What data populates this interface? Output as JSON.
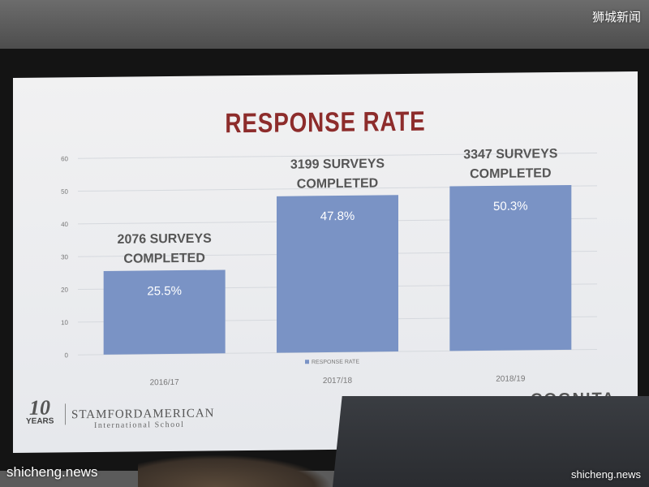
{
  "watermarks": {
    "top_right": "狮城新闻",
    "bottom_left": "shicheng.news",
    "bottom_right": "shicheng.news"
  },
  "slide": {
    "title": "RESPONSE RATE",
    "logo_left": {
      "number": "10",
      "years": "YEARS",
      "name": "STAMFORDAMERICAN",
      "sub": "International School"
    },
    "logo_right": "COGNITA"
  },
  "colors": {
    "bar": "#7a93c5",
    "title": "#8d2c2b",
    "grid": "#d6d9de",
    "axis_text": "#777777"
  },
  "chart_data": {
    "type": "bar",
    "title": "RESPONSE RATE",
    "categories": [
      "2016/17",
      "2017/18",
      "2018/19"
    ],
    "series": [
      {
        "name": "RESPONSE RATE",
        "values": [
          25.5,
          47.8,
          50.3
        ]
      }
    ],
    "data_labels": [
      "25.5%",
      "47.8%",
      "50.3%"
    ],
    "annotations": [
      [
        "2076 SURVEYS",
        "COMPLETED"
      ],
      [
        "3199 SURVEYS",
        "COMPLETED"
      ],
      [
        "3347 SURVEYS",
        "COMPLETED"
      ]
    ],
    "y_ticks": [
      0,
      10,
      20,
      30,
      40,
      50,
      60
    ],
    "ylim": [
      0,
      60
    ],
    "grid": true,
    "legend_position": "bottom-center"
  }
}
